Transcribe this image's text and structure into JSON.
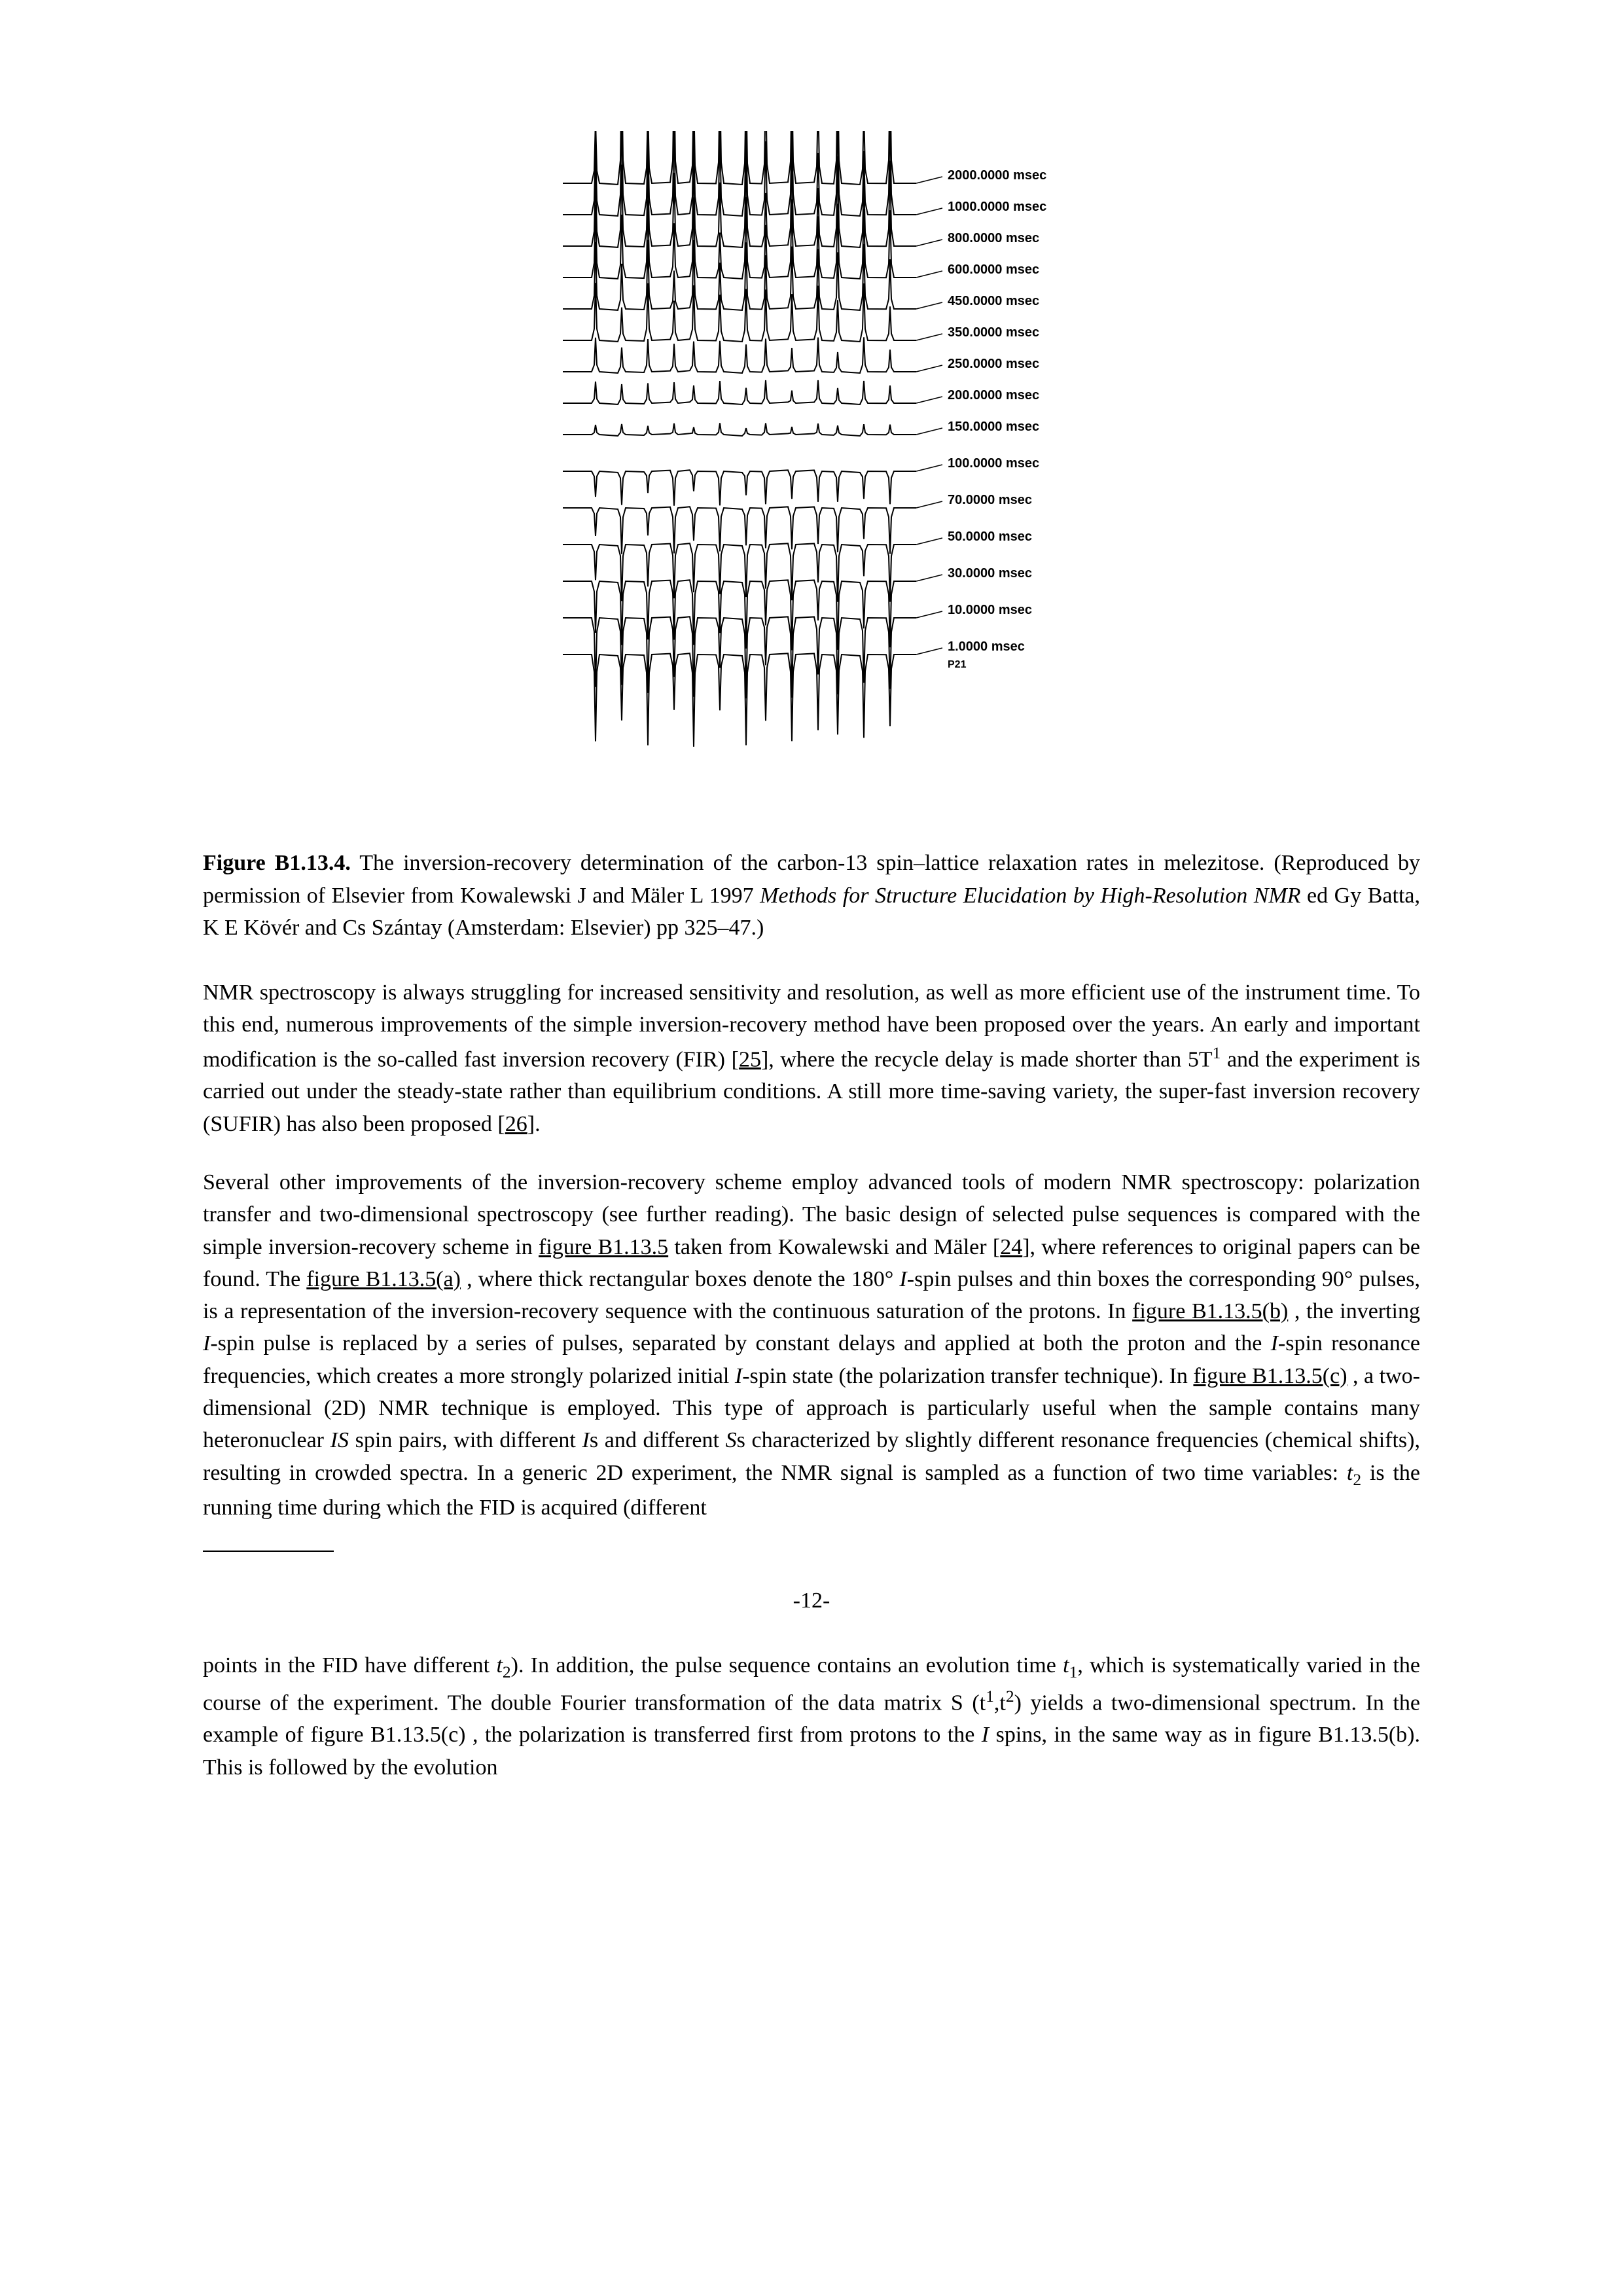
{
  "figure": {
    "traces": [
      {
        "y": 0,
        "label": "2000.0000 msec",
        "peak_height": 1.0,
        "inverted": false,
        "upward_peaks": true
      },
      {
        "y": 1,
        "label": "1000.0000 msec",
        "peak_height": 0.9,
        "inverted": false,
        "upward_peaks": true
      },
      {
        "y": 2,
        "label": "800.0000 msec",
        "peak_height": 0.8,
        "inverted": false,
        "upward_peaks": true
      },
      {
        "y": 3,
        "label": "600.0000 msec",
        "peak_height": 0.7,
        "inverted": false,
        "upward_peaks": true
      },
      {
        "y": 4,
        "label": "450.0000 msec",
        "peak_height": 0.6,
        "inverted": false,
        "upward_peaks": true
      },
      {
        "y": 5,
        "label": "350.0000 msec",
        "peak_height": 0.5,
        "inverted": false,
        "upward_peaks": true
      },
      {
        "y": 6,
        "label": "250.0000 msec",
        "peak_height": 0.3,
        "inverted": false,
        "upward_peaks": true
      },
      {
        "y": 7,
        "label": "200.0000 msec",
        "peak_height": 0.2,
        "inverted": false,
        "upward_peaks": true
      },
      {
        "y": 8,
        "label": "150.0000 msec",
        "peak_height": 0.1,
        "inverted": false,
        "upward_peaks": false
      },
      {
        "y": 9,
        "label": "100.0000 msec",
        "peak_height": 0.3,
        "inverted": true,
        "upward_peaks": false
      },
      {
        "y": 10,
        "label": "70.0000 msec",
        "peak_height": 0.4,
        "inverted": true,
        "upward_peaks": false
      },
      {
        "y": 11,
        "label": "50.0000 msec",
        "peak_height": 0.5,
        "inverted": true,
        "upward_peaks": false
      },
      {
        "y": 12,
        "label": "30.0000 msec",
        "peak_height": 0.6,
        "inverted": true,
        "upward_peaks": false
      },
      {
        "y": 13,
        "label": "10.0000 msec",
        "peak_height": 0.7,
        "inverted": true,
        "upward_peaks": false
      },
      {
        "y": 14,
        "label": "1.0000 msec",
        "peak_height": 0.8,
        "inverted": true,
        "upward_peaks": false
      }
    ],
    "ppm_label": "P21",
    "spectrum_width": 800,
    "spectrum_height": 950,
    "trace_spacing": 48,
    "baseline_length": 540,
    "peak_positions": [
      50,
      90,
      130,
      170,
      200,
      240,
      280,
      310,
      350,
      390,
      420,
      460,
      500
    ],
    "stroke_color": "#000000",
    "label_font_size": 20,
    "label_font_weight": "bold",
    "font_family": "Arial, sans-serif"
  },
  "caption": {
    "label": "Figure B1.13.4.",
    "text_before_ref": " The inversion-recovery determination of the carbon-13 spin–lattice relaxation rates in melezitose. (Reproduced by permission of Elsevier from Kowalewski J and Mäler L 1997 ",
    "ref_italic": "Methods for Structure Elucidation by High-Resolution NMR",
    "text_after_ref": " ed Gy Batta, K E Kövér and Cs Szántay (Amsterdam: Elsevier) pp 325–47.)"
  },
  "para1": {
    "t1a": "NMR spectroscopy is always struggling for increased sensitivity and resolution, as well as more efficient use of the instrument time. To this end, numerous improvements of the simple inversion-recovery method have been proposed over the years. An early and important modification is the so-called fast inversion recovery (FIR) [",
    "ref25": "25",
    "t1b": "], where the recycle delay is made shorter than 5T",
    "sup1": "1",
    "t1c": " and the experiment is carried out under the steady-state rather than equilibrium conditions. A still more time-saving variety, the super-fast inversion recovery (SUFIR) has also been proposed [",
    "ref26": "26",
    "t1d": "]."
  },
  "para2": {
    "t2a": "Several other improvements of the inversion-recovery scheme employ advanced tools of modern NMR spectroscopy: polarization transfer and two-dimensional spectroscopy (see further reading). The basic design of selected pulse sequences is compared with the simple inversion-recovery scheme in ",
    "link1": "figure B1.13.5",
    "t2b": " taken from Kowalewski and Mäler [",
    "ref24": "24",
    "t2c": "], where references to original papers can be found. The ",
    "link2": "figure B1.13.5(a)",
    "t2d": " ,  where thick rectangular boxes denote the 180° ",
    "i_spin1": "I",
    "t2e": "-spin pulses and thin boxes the corresponding 90° pulses, is a representation of the inversion-recovery sequence with the continuous saturation of the protons. In ",
    "link3": "figure B1.13.5(b)",
    "t2f": " , the inverting ",
    "i_spin2": "I",
    "t2g": "-spin pulse is replaced by a series of pulses, separated by constant delays and applied at both the proton and the ",
    "i_spin3": "I",
    "t2h": "-spin resonance frequencies, which creates a more strongly polarized initial ",
    "i_spin4": "I",
    "t2i": "-spin state (the polarization transfer technique). In ",
    "link4": "figure B1.13.5(c)",
    "t2j": " , a two-dimensional (2D) NMR technique is employed. This type of approach is particularly useful when the sample contains many heteronuclear ",
    "is_pair": "IS",
    "t2k": " spin pairs, with different ",
    "i_plural": "I",
    "t2l": "s and different ",
    "s_plural": "S",
    "t2m": "s characterized by slightly different resonance frequencies (chemical shifts), resulting in crowded spectra. In a generic 2D experiment, the NMR signal is sampled as a function of two time variables: ",
    "t_var": "t",
    "sub2": "2",
    "t2n": " is the running time during which the FID is acquired (different"
  },
  "pagenum": "-12-",
  "para3": {
    "t3a": "points in the FID have different ",
    "t_var1": "t",
    "sub2": "2",
    "t3b": "). In addition, the pulse sequence contains an evolution time ",
    "t_var2": "t",
    "sub1": "1",
    "t3c": ", which is systematically varied in the course of the experiment. The double Fourier transformation of the data matrix S (t",
    "sup1": "1",
    "t3d": ",t",
    "sup2": "2",
    "t3e": ") yields a two-dimensional spectrum. In the example of figure B1.13.5(c) , the polarization is transferred first from protons to the ",
    "i_spin": "I",
    "t3f": " spins, in the same way as in figure B1.13.5(b). This is followed by the evolution"
  }
}
